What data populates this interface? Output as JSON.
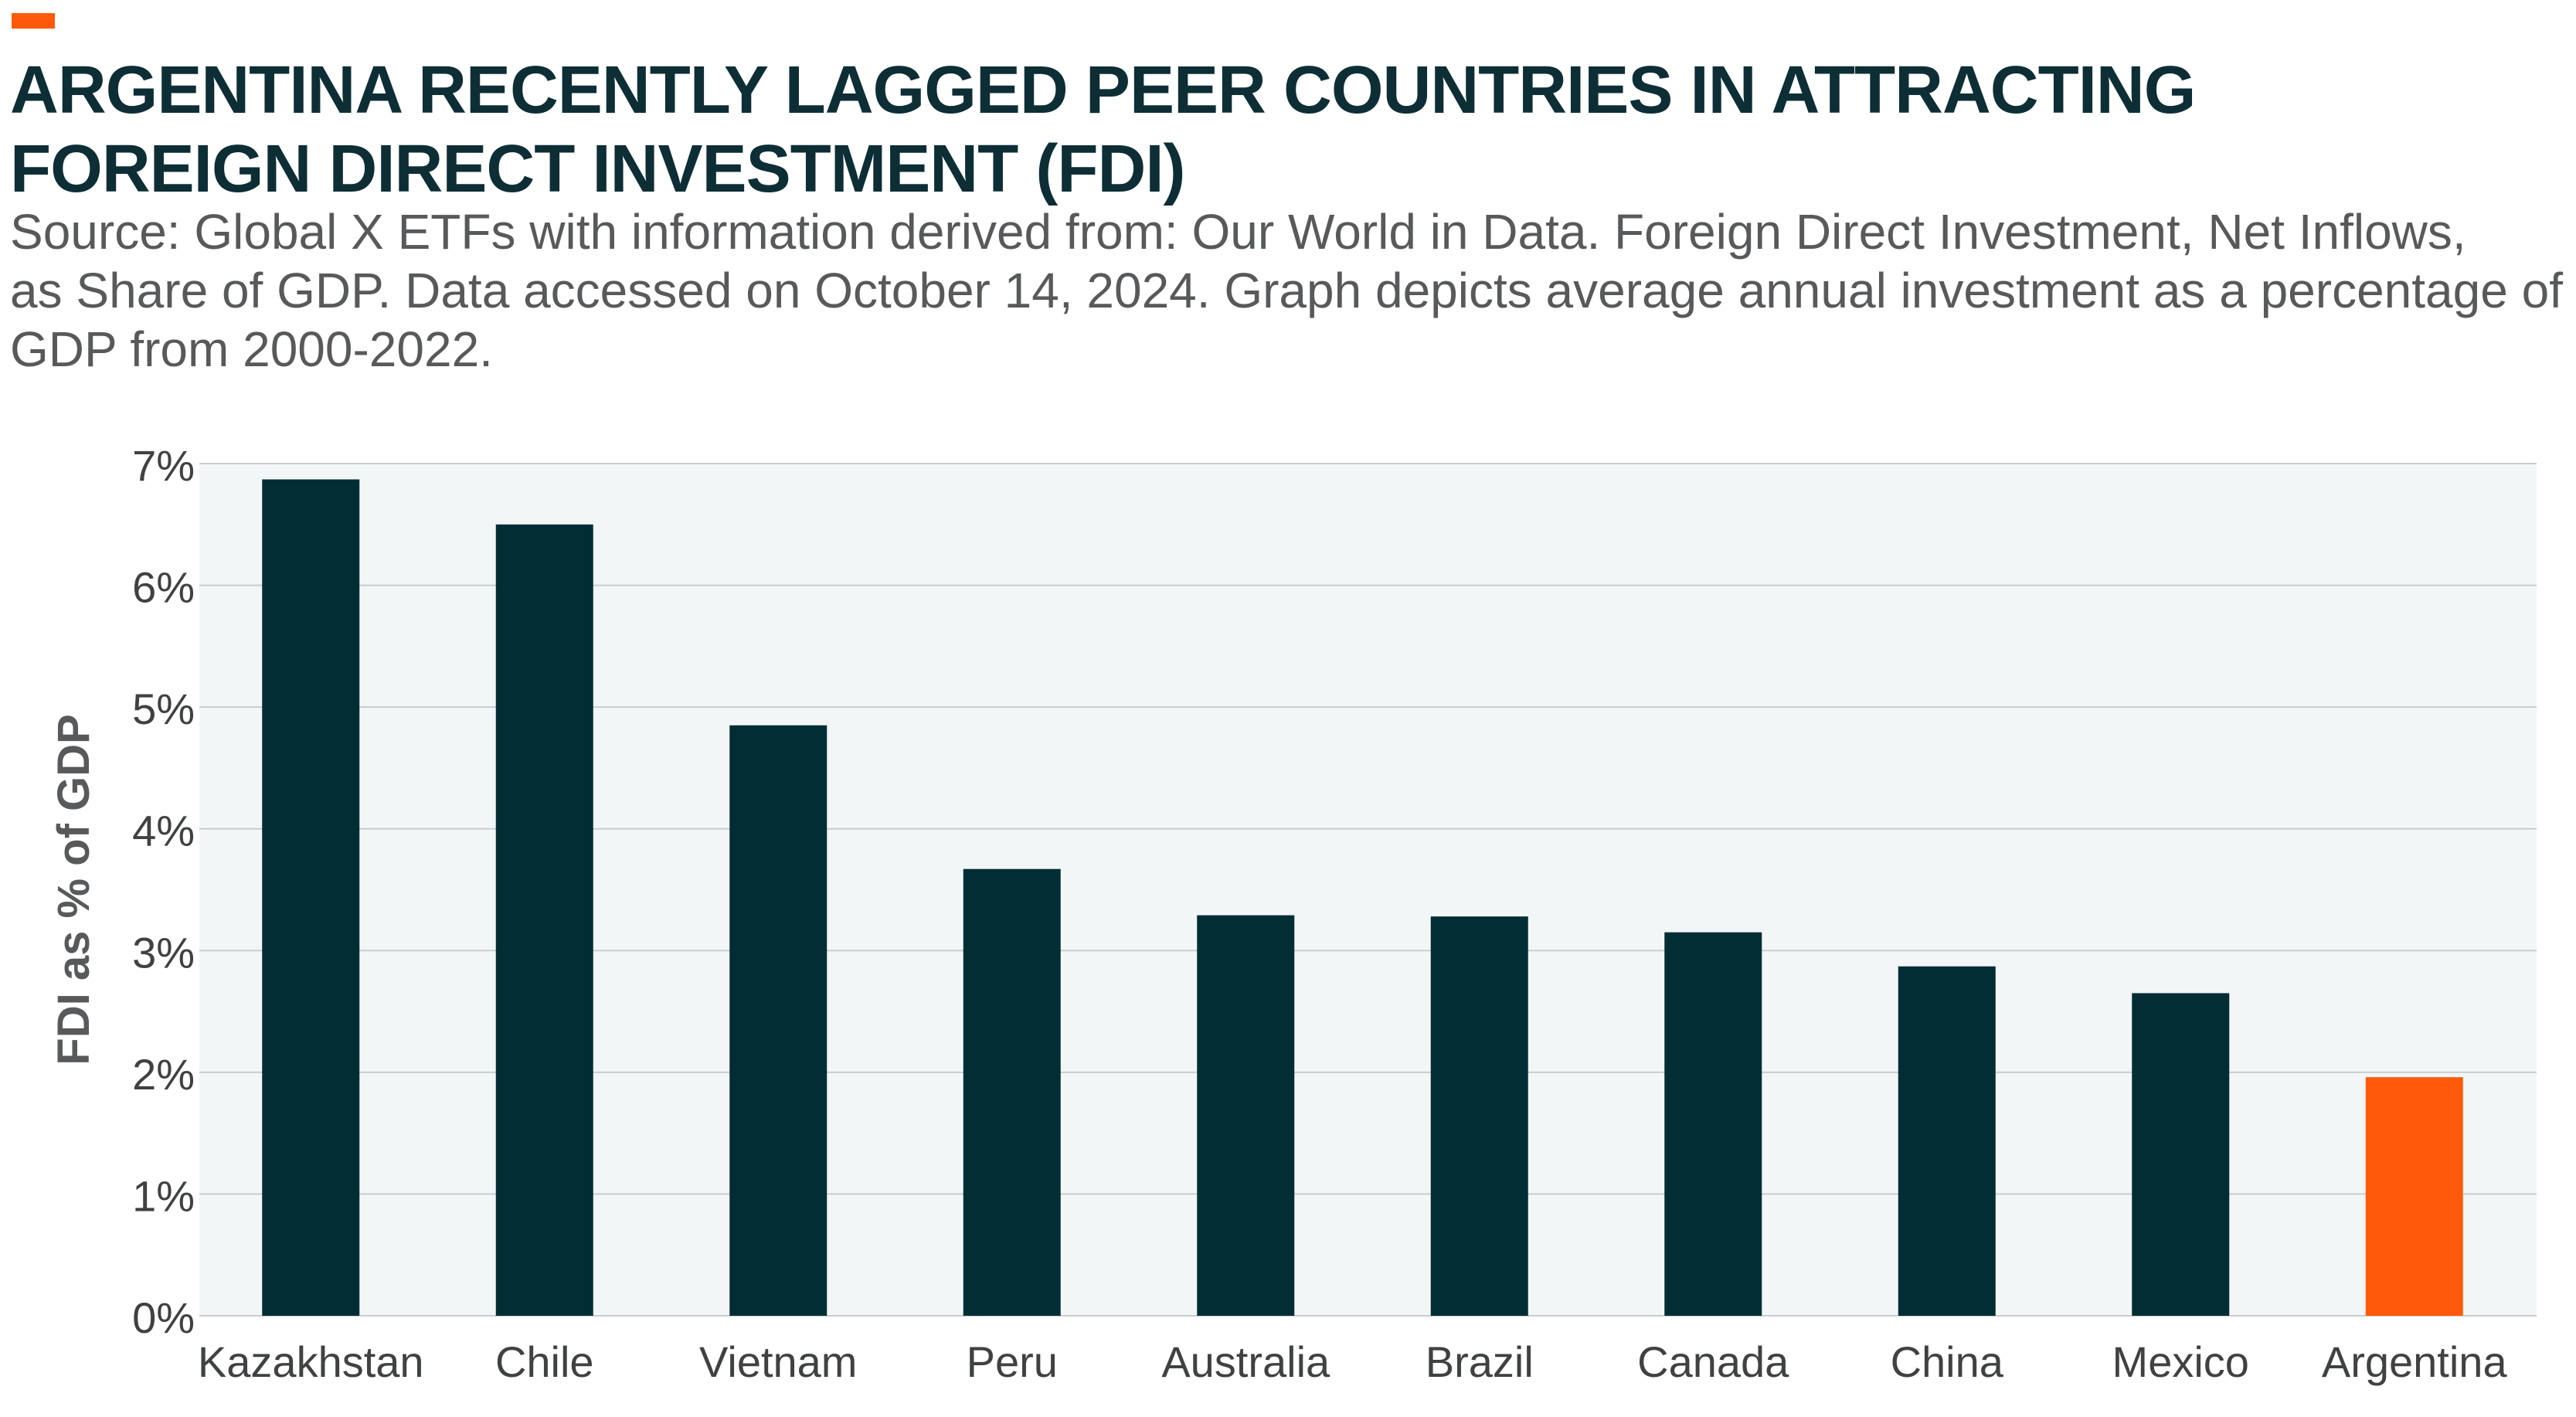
{
  "header": {
    "accent_color": "#ff5a0a",
    "title_lines": [
      "ARGENTINA RECENTLY LAGGED PEER COUNTRIES IN ATTRACTING",
      "FOREIGN DIRECT INVESTMENT (FDI)"
    ],
    "subtitle_lines": [
      "Source: Global X ETFs with information derived from: Our World in Data. Foreign Direct Investment, Net Inflows,",
      "as Share of GDP. Data accessed on October 14, 2024. Graph depicts average annual investment as a percentage of",
      "GDP from 2000-2022."
    ]
  },
  "chart_data": {
    "type": "bar",
    "categories": [
      "Kazakhstan",
      "Chile",
      "Vietnam",
      "Peru",
      "Australia",
      "Brazil",
      "Canada",
      "China",
      "Mexico",
      "Argentina"
    ],
    "values": [
      6.87,
      6.5,
      4.85,
      3.67,
      3.29,
      3.28,
      3.15,
      2.87,
      2.65,
      1.96
    ],
    "ylabel": "FDI as % of GDP",
    "ylim": [
      0,
      7
    ],
    "yticks": [
      "0%",
      "1%",
      "2%",
      "3%",
      "4%",
      "5%",
      "6%",
      "7%"
    ],
    "grid": true,
    "colors": {
      "bar": "#032d35",
      "highlight": "#ff5a0a",
      "plot_background": "#f3f6f7",
      "gridline": "#c8cdd0"
    },
    "highlight_category": "Argentina"
  }
}
